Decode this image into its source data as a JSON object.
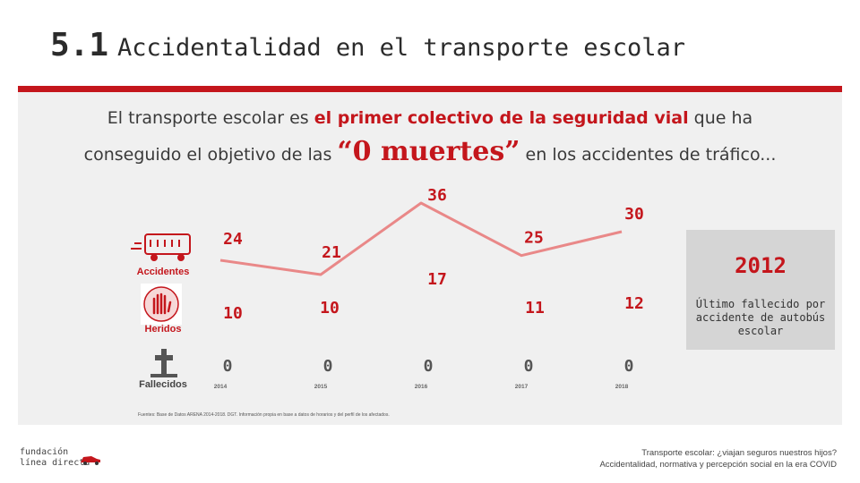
{
  "header": {
    "section_number": "5.1",
    "title": "Accidentalidad en el transporte escolar"
  },
  "intro": {
    "line1_pre": "El transporte escolar es ",
    "line1_bold": "el primer colectivo de la seguridad vial",
    "line1_post": " que ha",
    "line2_pre": "conseguido el objetivo de las ",
    "line2_big": "“0 muertes”",
    "line2_post": " en los accidentes de tráfico..."
  },
  "colors": {
    "accent": "#c4161c",
    "panel": "#f0f0f0",
    "box": "#d5d5d5"
  },
  "chart_data": {
    "type": "line",
    "categories": [
      "2014",
      "2015",
      "2016",
      "2017",
      "2018"
    ],
    "series": [
      {
        "name": "Accidentes",
        "values": [
          24,
          21,
          36,
          25,
          30
        ]
      },
      {
        "name": "Heridos",
        "values": [
          10,
          10,
          17,
          11,
          12
        ]
      },
      {
        "name": "Fallecidos",
        "values": [
          0,
          0,
          0,
          0,
          0
        ]
      }
    ]
  },
  "rows": {
    "accidents_label": "Accidentes",
    "injured_label": "Heridos",
    "deaths_label": "Fallecidos"
  },
  "highlight": {
    "year": "2012",
    "caption": "Último fallecido por accidente de autobús escolar"
  },
  "source": "Fuentes: Base de Datos ARENA 2014-2018. DGT. Información propia en base a datos de horarios y del perfil de los afectados.",
  "logo": {
    "line1": "fundación",
    "line2": "línea directa"
  },
  "footer": {
    "line1": "Transporte escolar: ¿viajan seguros nuestros hijos?",
    "line2": "Accidentalidad, normativa y percepción social en la era COVID"
  }
}
